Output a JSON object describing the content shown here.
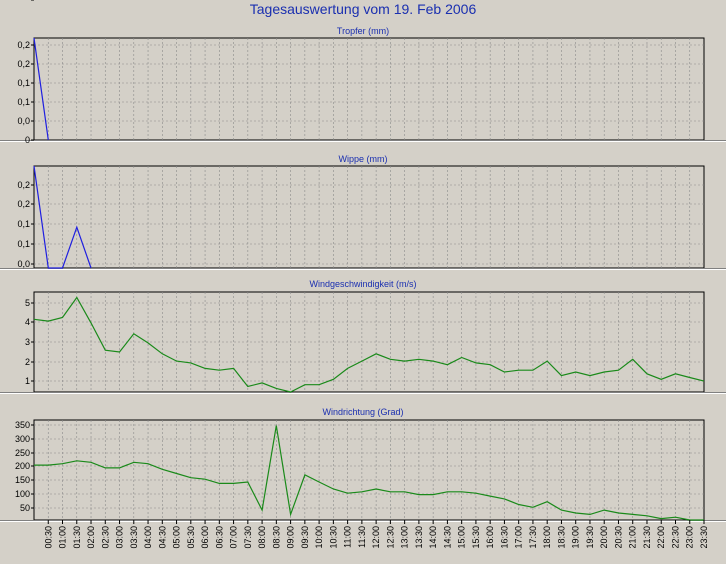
{
  "page_title": "Tagesauswertung vom 19. Feb 2006",
  "chart_data": [
    {
      "type": "line",
      "title": "Tropfer (mm)",
      "color": "#1f1fe0",
      "yticks": [
        "0,2",
        "0,2",
        "0,1",
        "0,1",
        "0,0",
        "0"
      ],
      "ylim": [
        0,
        0.25
      ],
      "x": [
        0,
        1
      ],
      "values": [
        0.25,
        0
      ]
    },
    {
      "type": "line",
      "title": "Wippe (mm)",
      "color": "#1f1fe0",
      "yticks": [
        "0,2",
        "0,2",
        "0,1",
        "0,1",
        "0,0",
        "0"
      ],
      "ylim": [
        0,
        0.25
      ],
      "x": [
        0,
        1,
        2,
        3,
        4
      ],
      "values": [
        0.25,
        0,
        0,
        0.1,
        0
      ]
    },
    {
      "type": "line",
      "title": "Windgeschwindigkeit (m/s)",
      "color": "#1a8a1a",
      "yticks": [
        "5",
        "4",
        "3",
        "2",
        "1"
      ],
      "ylim": [
        0.3,
        5.8
      ],
      "x": [
        0,
        1,
        2,
        3,
        4,
        5,
        6,
        7,
        8,
        9,
        10,
        11,
        12,
        13,
        14,
        15,
        16,
        17,
        18,
        19,
        20,
        21,
        22,
        23,
        24,
        25,
        26,
        27,
        28,
        29,
        30,
        31,
        32,
        33,
        34,
        35,
        36,
        37,
        38,
        39,
        40,
        41,
        42,
        43,
        44,
        45,
        46,
        47
      ],
      "values": [
        4.3,
        4.2,
        4.4,
        5.5,
        4.1,
        2.6,
        2.5,
        3.5,
        3.0,
        2.4,
        2.0,
        1.9,
        1.6,
        1.5,
        1.6,
        0.6,
        0.8,
        0.5,
        0.3,
        0.7,
        0.7,
        1.0,
        1.6,
        2.0,
        2.4,
        2.1,
        2.0,
        2.1,
        2.0,
        1.8,
        2.2,
        1.9,
        1.8,
        1.4,
        1.5,
        1.5,
        2.0,
        1.2,
        1.4,
        1.2,
        1.4,
        1.5,
        2.1,
        1.3,
        1.0,
        1.3,
        1.1,
        0.9
      ]
    },
    {
      "type": "line",
      "title": "Windrichtung (Grad)",
      "color": "#1a8a1a",
      "yticks": [
        "350",
        "300",
        "250",
        "200",
        "150",
        "100",
        "50"
      ],
      "ylim": [
        10,
        365
      ],
      "x": [
        0,
        1,
        2,
        3,
        4,
        5,
        6,
        7,
        8,
        9,
        10,
        11,
        12,
        13,
        14,
        15,
        16,
        17,
        18,
        19,
        20,
        21,
        22,
        23,
        24,
        25,
        26,
        27,
        28,
        29,
        30,
        31,
        32,
        33,
        34,
        35,
        36,
        37,
        38,
        39,
        40,
        41,
        42,
        43,
        44,
        45,
        46,
        47
      ],
      "values": [
        205,
        205,
        210,
        220,
        215,
        195,
        195,
        215,
        210,
        190,
        175,
        160,
        155,
        140,
        140,
        145,
        45,
        345,
        30,
        170,
        145,
        120,
        105,
        110,
        120,
        110,
        110,
        100,
        100,
        110,
        110,
        105,
        95,
        85,
        65,
        55,
        75,
        45,
        35,
        30,
        45,
        35,
        30,
        25,
        15,
        20,
        10,
        10
      ]
    }
  ],
  "x_axis": {
    "tick_labels": [
      "00:30",
      "01:00",
      "01:30",
      "02:00",
      "02:30",
      "03:00",
      "03:30",
      "04:00",
      "04:30",
      "05:00",
      "05:30",
      "06:00",
      "06:30",
      "07:00",
      "07:30",
      "08:00",
      "08:30",
      "09:00",
      "09:30",
      "10:00",
      "10:30",
      "11:00",
      "11:30",
      "12:00",
      "12:30",
      "13:00",
      "13:30",
      "14:00",
      "14:30",
      "15:00",
      "15:30",
      "16:00",
      "16:30",
      "17:00",
      "17:30",
      "18:00",
      "18:30",
      "19:00",
      "19:30",
      "20:00",
      "20:30",
      "21:00",
      "21:30",
      "22:00",
      "22:30",
      "23:00",
      "23:30"
    ]
  },
  "colors": {
    "title": "#1a2fb0",
    "panel_title": "#1a2fb0",
    "grid": "#8a8a8a",
    "plot_bg": "#d4d0c8"
  }
}
